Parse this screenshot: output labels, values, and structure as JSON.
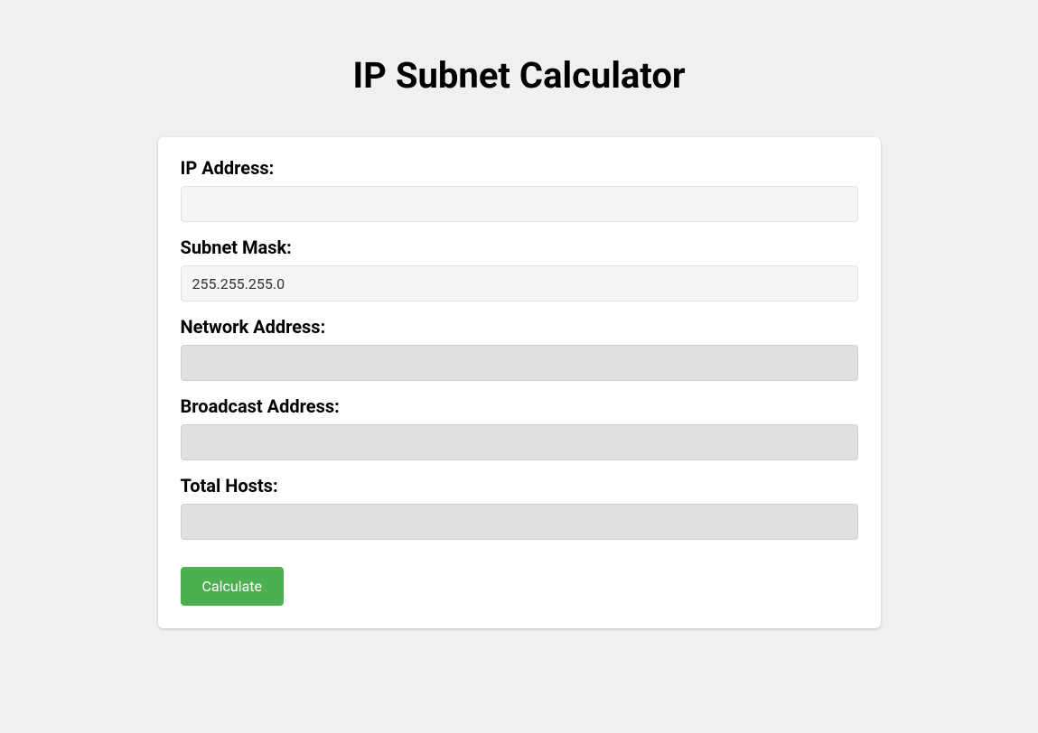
{
  "page": {
    "title": "IP Subnet Calculator"
  },
  "form": {
    "ip_address": {
      "label": "IP Address:",
      "value": ""
    },
    "subnet_mask": {
      "label": "Subnet Mask:",
      "value": "255.255.255.0"
    },
    "network_address": {
      "label": "Network Address:",
      "value": ""
    },
    "broadcast_address": {
      "label": "Broadcast Address:",
      "value": ""
    },
    "total_hosts": {
      "label": "Total Hosts:",
      "value": ""
    }
  },
  "actions": {
    "calculate_label": "Calculate"
  },
  "colors": {
    "page_background": "#f0f0f0",
    "card_background": "#ffffff",
    "input_background": "#f5f5f5",
    "readonly_background": "#e0e0e0",
    "button_background": "#4CAF50",
    "button_text": "#ffffff",
    "text_primary": "#000000"
  }
}
